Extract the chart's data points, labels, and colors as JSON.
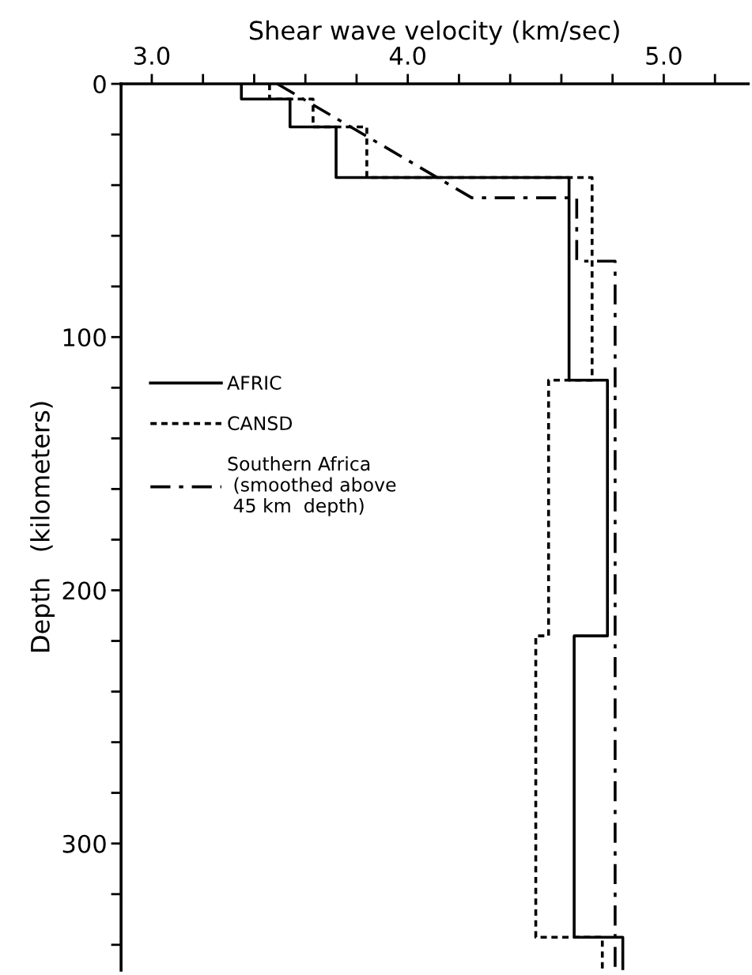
{
  "chart_data": {
    "type": "line",
    "xlabel": "Shear wave velocity (km/sec)",
    "ylabel": "Depth   (kilometers)",
    "xlim": [
      2.88,
      5.33
    ],
    "xticks": [
      {
        "value": 3.0,
        "label": "3.0"
      },
      {
        "value": 3.2,
        "label": null
      },
      {
        "value": 3.4,
        "label": null
      },
      {
        "value": 3.6,
        "label": null
      },
      {
        "value": 3.8,
        "label": null
      },
      {
        "value": 4.0,
        "label": "4.0"
      },
      {
        "value": 4.2,
        "label": null
      },
      {
        "value": 4.4,
        "label": null
      },
      {
        "value": 4.6,
        "label": null
      },
      {
        "value": 4.8,
        "label": null
      },
      {
        "value": 5.0,
        "label": "5.0"
      },
      {
        "value": 5.2,
        "label": null
      }
    ],
    "ylim": [
      350,
      0
    ],
    "yticks": [
      0,
      {
        "value": 20,
        "label": null
      },
      {
        "value": 40,
        "label": null
      },
      {
        "value": 60,
        "label": null
      },
      {
        "value": 80,
        "label": null
      },
      100,
      {
        "value": 120,
        "label": null
      },
      {
        "value": 140,
        "label": null
      },
      {
        "value": 160,
        "label": null
      },
      {
        "value": 180,
        "label": null
      },
      200,
      {
        "value": 220,
        "label": null
      },
      {
        "value": 240,
        "label": null
      },
      {
        "value": 260,
        "label": null
      },
      {
        "value": 280,
        "label": null
      },
      300,
      {
        "value": 320,
        "label": null
      },
      {
        "value": 340,
        "label": null
      }
    ],
    "grid": false,
    "legend": "left",
    "marker": "none",
    "series": [
      {
        "name": "AFRIC",
        "color": "#000000",
        "line_style": "solid",
        "x": [
          3.35,
          3.35,
          3.54,
          3.54,
          3.72,
          3.72,
          4.63,
          4.63,
          4.78,
          4.78,
          4.65,
          4.65,
          4.84,
          4.84
        ],
        "values": [
          0,
          6,
          6,
          17,
          17,
          37,
          37,
          117,
          117,
          218,
          218,
          337,
          337,
          350
        ]
      },
      {
        "name": "CANSD",
        "color": "#000000",
        "line_style": "dotted",
        "x": [
          3.46,
          3.46,
          3.63,
          3.63,
          3.84,
          3.84,
          4.72,
          4.72,
          4.55,
          4.55,
          4.5,
          4.5,
          4.76,
          4.76
        ],
        "values": [
          0,
          6,
          6,
          17,
          17,
          37,
          37,
          117,
          117,
          218,
          218,
          337,
          337,
          350
        ]
      },
      {
        "name": "Southern Africa\n (smoothed above\n 45 km  depth)",
        "color": "#000000",
        "line_style": "dashdot",
        "x": [
          3.49,
          4.25,
          4.66,
          4.66,
          4.81,
          4.81
        ],
        "values": [
          0,
          45,
          45,
          70,
          70,
          350
        ]
      }
    ]
  }
}
